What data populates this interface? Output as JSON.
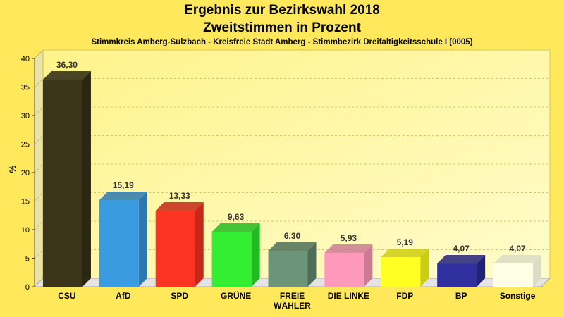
{
  "chart_data": {
    "type": "bar",
    "title": "Ergebnis zur Bezirkswahl 2018",
    "subtitle": "Zweitstimmen in Prozent",
    "subsubtitle": "Stimmkreis Amberg-Sulzbach - Kreisfreie Stadt Amberg - Stimmbezirk Dreifaltigkeitsschule I (0005)",
    "ylabel": "%",
    "xlabel": "",
    "ylim": [
      0,
      40
    ],
    "yticks": [
      0,
      5,
      10,
      15,
      20,
      25,
      30,
      35,
      40
    ],
    "grid": true,
    "categories": [
      [
        "CSU"
      ],
      [
        "AfD"
      ],
      [
        "SPD"
      ],
      [
        "GRÜNE"
      ],
      [
        "FREIE",
        "WÄHLER"
      ],
      [
        "DIE LINKE"
      ],
      [
        "FDP"
      ],
      [
        "BP"
      ],
      [
        "Sonstige"
      ]
    ],
    "values": [
      36.3,
      15.19,
      13.33,
      9.63,
      6.3,
      5.93,
      5.19,
      4.07,
      4.07
    ],
    "value_labels": [
      "36,30",
      "15,19",
      "13,33",
      "9,63",
      "6,30",
      "5,93",
      "5,19",
      "4,07",
      "4,07"
    ],
    "colors": [
      "#3A3519",
      "#3B9BE0",
      "#FF3322",
      "#33EE33",
      "#6B9478",
      "#FF99BB",
      "#FFFF22",
      "#2F2FA0",
      "#FFFFE6"
    ],
    "side_colors": [
      "#2A2612",
      "#2C78AF",
      "#C82618",
      "#22BB22",
      "#4F6E59",
      "#CC7A95",
      "#CCCC12",
      "#21217A",
      "#DCDCC4"
    ]
  }
}
